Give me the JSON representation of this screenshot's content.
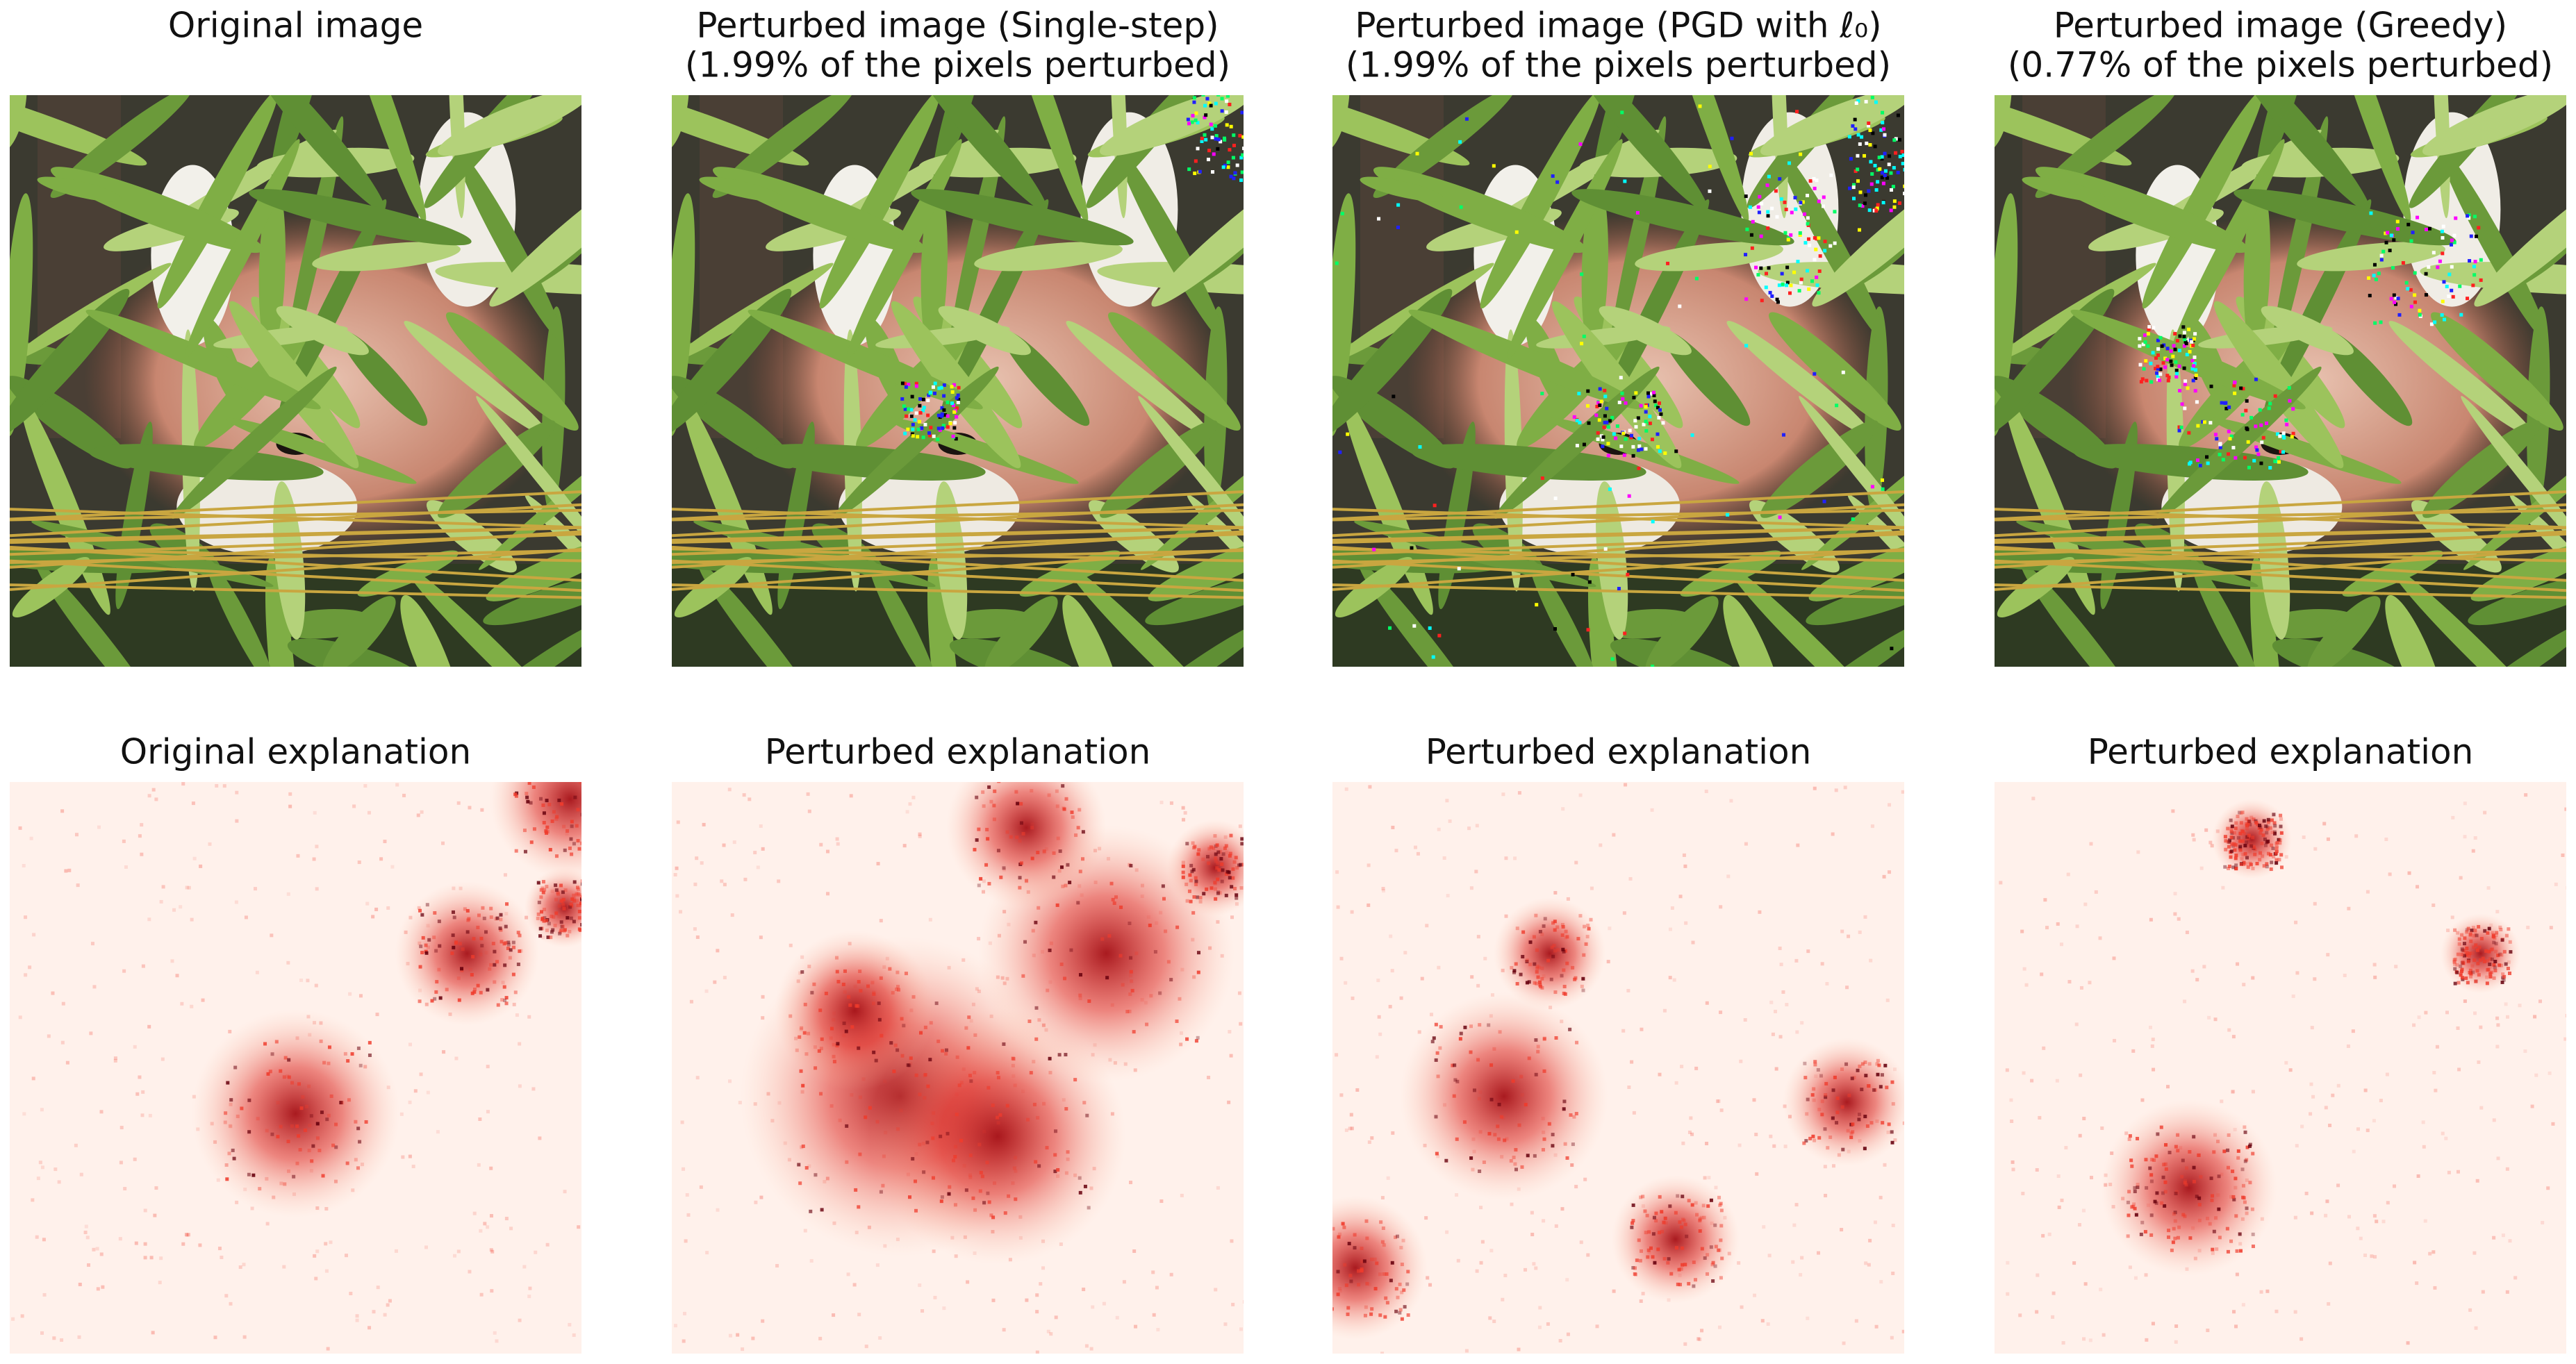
{
  "top_row": [
    {
      "title_lines": [
        "Original image"
      ]
    },
    {
      "title_lines": [
        "Perturbed image (Single-step)",
        "(1.99% of the pixels perturbed)"
      ]
    },
    {
      "title_lines": [
        "Perturbed image (PGD with ℓ₀)",
        "(1.99% of the pixels perturbed)"
      ]
    },
    {
      "title_lines": [
        "Perturbed image (Greedy)",
        "(0.77% of the pixels perturbed)"
      ]
    }
  ],
  "bottom_row": [
    {
      "title": "Original explanation"
    },
    {
      "title": "Perturbed explanation"
    },
    {
      "title": "Perturbed explanation"
    },
    {
      "title": "Perturbed explanation"
    }
  ]
}
